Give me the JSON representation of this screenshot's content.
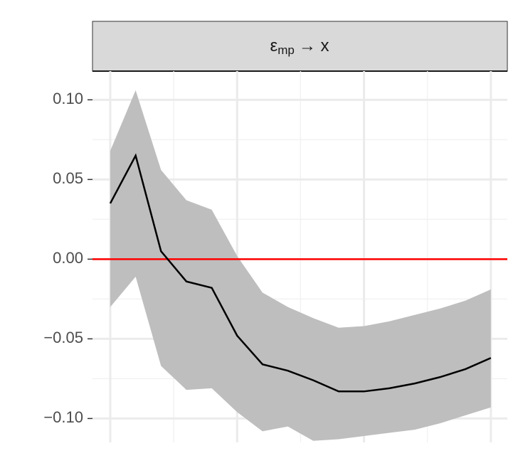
{
  "chart_data": {
    "type": "line",
    "title_parts": [
      "ε",
      "mp",
      "→ x"
    ],
    "x": [
      0,
      1,
      2,
      3,
      4,
      5,
      6,
      7,
      8,
      9,
      10,
      11,
      12,
      13,
      14,
      15
    ],
    "series": [
      {
        "color": "#000000",
        "band_color": "#bebebe",
        "values": [
          0.035,
          0.065,
          0.005,
          -0.014,
          -0.018,
          -0.048,
          -0.066,
          -0.07,
          -0.076,
          -0.083,
          -0.083,
          -0.081,
          -0.078,
          -0.074,
          -0.069,
          -0.062
        ],
        "upper": [
          0.068,
          0.106,
          0.056,
          0.037,
          0.031,
          0.002,
          -0.021,
          -0.03,
          -0.037,
          -0.043,
          -0.042,
          -0.039,
          -0.035,
          -0.031,
          -0.026,
          -0.019
        ],
        "lower": [
          -0.03,
          -0.011,
          -0.067,
          -0.082,
          -0.081,
          -0.096,
          -0.108,
          -0.105,
          -0.114,
          -0.113,
          -0.111,
          -0.109,
          -0.107,
          -0.103,
          -0.098,
          -0.093
        ]
      }
    ],
    "xlim": [
      -0.7,
      15.65
    ],
    "xticks": [
      0,
      5,
      10,
      15
    ],
    "ylim": [
      -0.115,
      0.118
    ],
    "yticks": [
      {
        "value": -0.1,
        "label": "−0.10"
      },
      {
        "value": -0.05,
        "label": "−0.05"
      },
      {
        "value": 0,
        "label": "0.00"
      },
      {
        "value": 0.05,
        "label": "0.05"
      },
      {
        "value": 0.1,
        "label": "0.10"
      }
    ],
    "hline": {
      "value": 0,
      "color": "#ff0000"
    },
    "grid": true
  }
}
